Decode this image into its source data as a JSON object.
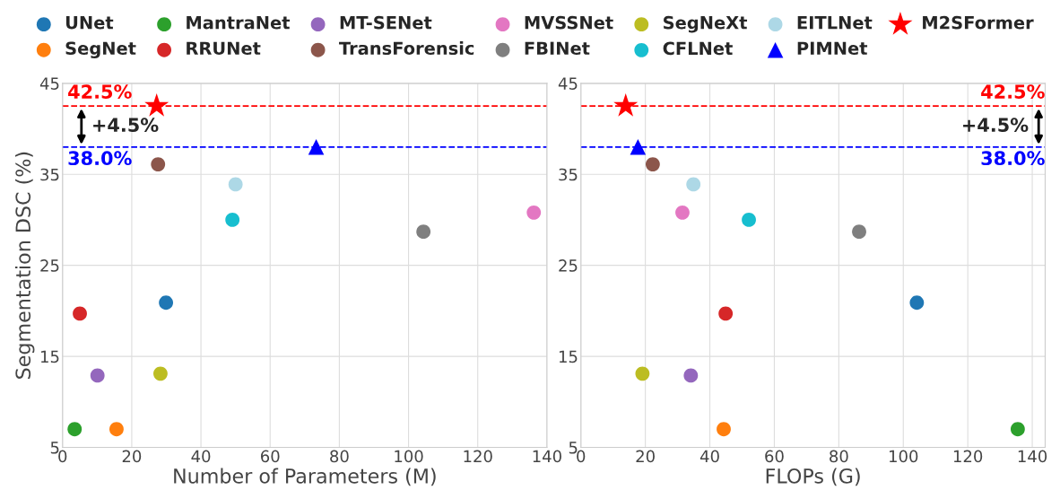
{
  "chart_data": [
    {
      "type": "scatter",
      "xlabel": "Number of Parameters (M)",
      "ylabel": "Segmentation DSC (%)",
      "xlim": [
        0,
        140
      ],
      "xticks": [
        0,
        20,
        40,
        60,
        80,
        100,
        120,
        140
      ],
      "ylim": [
        5,
        45
      ],
      "yticks": [
        5,
        15,
        25,
        35,
        45
      ],
      "grid": true,
      "legend": "top",
      "marker": "circle",
      "series": [
        {
          "name": "UNet",
          "color": "#1f77b4",
          "x": [
            29.9
          ],
          "values": [
            20.9
          ]
        },
        {
          "name": "SegNet",
          "color": "#ff7f0e",
          "x": [
            15.6
          ],
          "values": [
            7.0
          ]
        },
        {
          "name": "MantraNet",
          "color": "#2ca02c",
          "x": [
            3.5
          ],
          "values": [
            7.0
          ]
        },
        {
          "name": "RRUNet",
          "color": "#d62728",
          "x": [
            5.0
          ],
          "values": [
            19.7
          ]
        },
        {
          "name": "MT-SENet",
          "color": "#9467bd",
          "x": [
            10.1
          ],
          "values": [
            12.9
          ]
        },
        {
          "name": "TransForensic",
          "color": "#8c564b",
          "x": [
            27.6
          ],
          "values": [
            36.1
          ]
        },
        {
          "name": "MVSSNet",
          "color": "#e377c2",
          "x": [
            136.2
          ],
          "values": [
            30.8
          ]
        },
        {
          "name": "FBINet",
          "color": "#7f7f7f",
          "x": [
            104.3
          ],
          "values": [
            28.7
          ]
        },
        {
          "name": "SegNeXt",
          "color": "#bcbd22",
          "x": [
            28.3
          ],
          "values": [
            13.1
          ]
        },
        {
          "name": "CFLNet",
          "color": "#17becf",
          "x": [
            49.1
          ],
          "values": [
            30.0
          ]
        },
        {
          "name": "EITLNet",
          "color": "#add8e6",
          "x": [
            50.0
          ],
          "values": [
            33.9
          ]
        },
        {
          "name": "PIMNet",
          "color": "#0000ff",
          "x": [
            73.3
          ],
          "values": [
            38.0
          ],
          "marker": "triangle"
        },
        {
          "name": "M2SFormer",
          "color": "#ff0000",
          "x": [
            27.2
          ],
          "values": [
            42.5
          ],
          "marker": "star"
        }
      ],
      "ref_lines": [
        {
          "axis": "y",
          "value": 42.5,
          "label": "42.5%",
          "color": "#ff0000",
          "line_style": "dashed"
        },
        {
          "axis": "y",
          "value": 38.0,
          "label": "38.0%",
          "color": "#0000ff",
          "line_style": "dashed"
        }
      ],
      "annotations": [
        "+4.5%"
      ]
    },
    {
      "type": "scatter",
      "xlabel": "FLOPs (G)",
      "xlim": [
        0,
        144
      ],
      "xticks": [
        0,
        20,
        40,
        60,
        80,
        100,
        120,
        140
      ],
      "ylim": [
        5,
        45
      ],
      "yticks": [
        5,
        15,
        25,
        35,
        45
      ],
      "grid": true,
      "marker": "circle",
      "series": [
        {
          "name": "UNet",
          "color": "#1f77b4",
          "x": [
            104.2
          ],
          "values": [
            20.9
          ]
        },
        {
          "name": "SegNet",
          "color": "#ff7f0e",
          "x": [
            44.3
          ],
          "values": [
            7.0
          ]
        },
        {
          "name": "MantraNet",
          "color": "#2ca02c",
          "x": [
            135.5
          ],
          "values": [
            7.0
          ]
        },
        {
          "name": "RRUNet",
          "color": "#d62728",
          "x": [
            44.9
          ],
          "values": [
            19.7
          ]
        },
        {
          "name": "MT-SENet",
          "color": "#9467bd",
          "x": [
            34.1
          ],
          "values": [
            12.9
          ]
        },
        {
          "name": "TransForensic",
          "color": "#8c564b",
          "x": [
            22.3
          ],
          "values": [
            36.1
          ]
        },
        {
          "name": "MVSSNet",
          "color": "#e377c2",
          "x": [
            31.5
          ],
          "values": [
            30.8
          ]
        },
        {
          "name": "FBINet",
          "color": "#7f7f7f",
          "x": [
            86.3
          ],
          "values": [
            28.7
          ]
        },
        {
          "name": "SegNeXt",
          "color": "#bcbd22",
          "x": [
            19.1
          ],
          "values": [
            13.1
          ]
        },
        {
          "name": "CFLNet",
          "color": "#17becf",
          "x": [
            52.1
          ],
          "values": [
            30.0
          ]
        },
        {
          "name": "EITLNet",
          "color": "#add8e6",
          "x": [
            34.9
          ],
          "values": [
            33.9
          ]
        },
        {
          "name": "PIMNet",
          "color": "#0000ff",
          "x": [
            17.7
          ],
          "values": [
            38.0
          ],
          "marker": "triangle"
        },
        {
          "name": "M2SFormer",
          "color": "#ff0000",
          "x": [
            13.9
          ],
          "values": [
            42.5
          ],
          "marker": "star"
        }
      ],
      "ref_lines": [
        {
          "axis": "y",
          "value": 42.5,
          "label": "42.5%",
          "color": "#ff0000",
          "line_style": "dashed"
        },
        {
          "axis": "y",
          "value": 38.0,
          "label": "38.0%",
          "color": "#0000ff",
          "line_style": "dashed"
        }
      ],
      "annotations": [
        "+4.5%"
      ]
    }
  ]
}
